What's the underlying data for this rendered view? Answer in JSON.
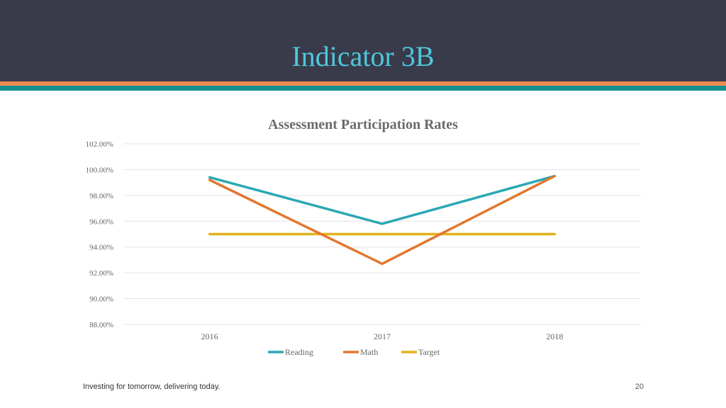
{
  "slide": {
    "title": "Indicator 3B",
    "footer": "Investing for tomorrow, delivering today.",
    "page_number": "20"
  },
  "colors": {
    "header_bg": "#393b4b",
    "title": "#4fc8dc",
    "stripe_orange": "#ef8a4e",
    "stripe_teal": "#14918f"
  },
  "chart_data": {
    "type": "line",
    "title": "Assessment Participation Rates",
    "xlabel": "",
    "ylabel": "",
    "categories": [
      "2016",
      "2017",
      "2018"
    ],
    "ylim": [
      88,
      102
    ],
    "y_ticks": [
      88,
      90,
      92,
      94,
      96,
      98,
      100,
      102
    ],
    "y_tick_labels": [
      "88.00%",
      "90.00%",
      "92.00%",
      "94.00%",
      "96.00%",
      "98.00%",
      "100.00%",
      "102.00%"
    ],
    "grid": true,
    "legend_position": "bottom",
    "series": [
      {
        "name": "Reading",
        "values": [
          99.4,
          95.8,
          99.5
        ],
        "color": "#2ba8b4"
      },
      {
        "name": "Math",
        "values": [
          99.2,
          92.7,
          99.5
        ],
        "color": "#e2772f"
      },
      {
        "name": "Target",
        "values": [
          95.0,
          95.0,
          95.0
        ],
        "color": "#e2b21c"
      }
    ]
  }
}
